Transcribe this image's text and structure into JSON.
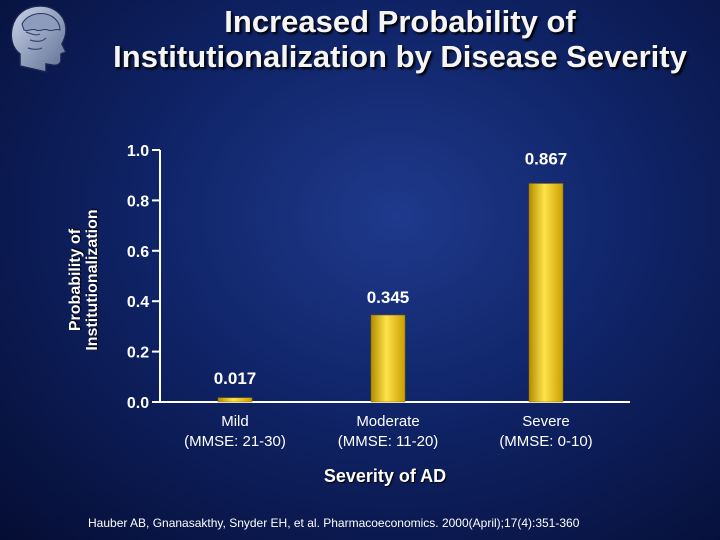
{
  "slide": {
    "title_lines": [
      "Increased Probability of",
      "Institutionalization by Disease Severity"
    ],
    "citation": "Hauber AB, Gnanasakthy, Snyder EH, et al. Pharmacoeconomics. 2000(April);17(4):351-360",
    "logo_icon": "head-profile-icon"
  },
  "chart_data": {
    "type": "bar",
    "ylabel_lines": [
      "Probability of",
      "Institutionalization"
    ],
    "xlabel": "Severity of AD",
    "ylim": [
      0,
      1.0
    ],
    "yticks": [
      "0.0",
      "0.2",
      "0.4",
      "0.6",
      "0.8",
      "1.0"
    ],
    "categories": [
      [
        "Mild",
        "(MMSE: 21-30)"
      ],
      [
        "Moderate",
        "(MMSE: 11-20)"
      ],
      [
        "Severe",
        "(MMSE: 0-10)"
      ]
    ],
    "values": [
      0.017,
      0.345,
      0.867
    ],
    "data_labels": [
      "0.017",
      "0.345",
      "0.867"
    ],
    "bar_color": "#f2c80c",
    "grid": false
  }
}
